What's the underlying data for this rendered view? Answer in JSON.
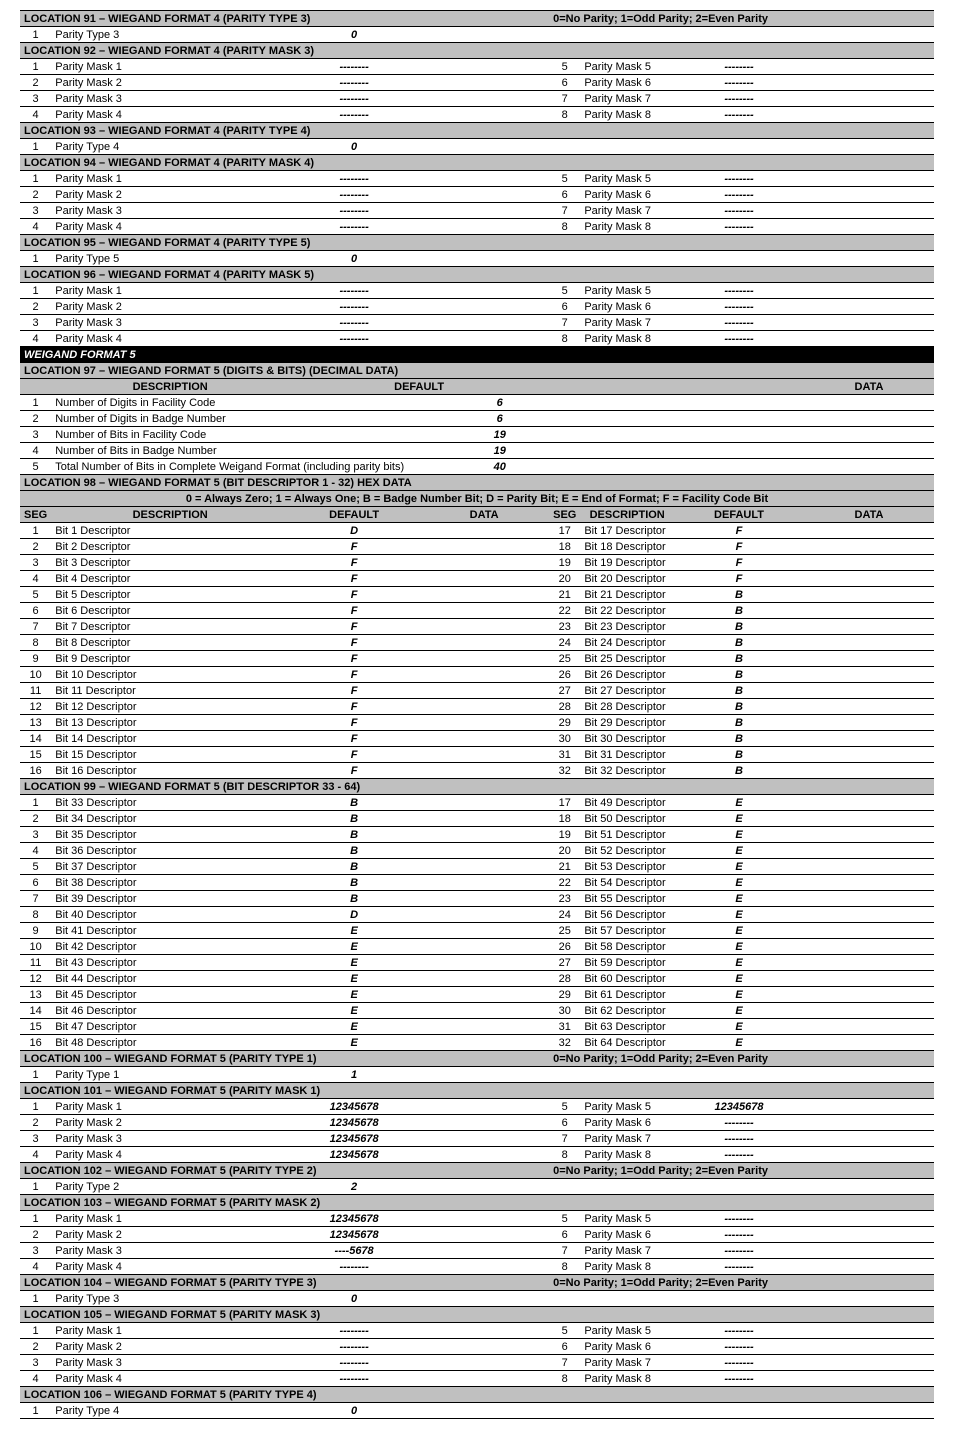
{
  "parity_note": "0=No Parity;  1=Odd Parity;  2=Even Parity",
  "dashes": "--------",
  "legend98": "0 = Always Zero; 1 = Always One; B = Badge Number Bit; D = Parity Bit; E = End of Format; F = Facility Code Bit",
  "loc91": {
    "title": "LOCATION 91 – WIEGAND FORMAT 4 (PARITY TYPE 3)",
    "row": {
      "n": "1",
      "label": "Parity Type 3",
      "def": "0"
    }
  },
  "loc92": {
    "title": "LOCATION 92 – WIEGAND FORMAT 4 (PARITY MASK 3)"
  },
  "loc93": {
    "title": "LOCATION 93 – WIEGAND FORMAT 4 (PARITY TYPE 4)",
    "row": {
      "n": "1",
      "label": "Parity Type 4",
      "def": "0"
    }
  },
  "loc94": {
    "title": "LOCATION 94 – WIEGAND FORMAT 4 (PARITY MASK 4)"
  },
  "loc95": {
    "title": "LOCATION 95 – WIEGAND FORMAT 4 (PARITY TYPE 5)",
    "row": {
      "n": "1",
      "label": "Parity Type 5",
      "def": "0"
    }
  },
  "loc96": {
    "title": "LOCATION 96 – WIEGAND FORMAT 4 (PARITY MASK 5)"
  },
  "wf5": {
    "title": "WEIGAND FORMAT 5"
  },
  "loc97": {
    "title": "LOCATION 97 – WIEGAND FORMAT 5 (DIGITS & BITS)  (DECIMAL DATA)",
    "cols": {
      "c1": "DESCRIPTION",
      "c2": "DEFAULT",
      "c3": "DATA"
    },
    "rows": [
      {
        "n": "1",
        "d": "Number of Digits in Facility Code",
        "v": "6"
      },
      {
        "n": "2",
        "d": "Number of Digits in Badge Number",
        "v": "6"
      },
      {
        "n": "3",
        "d": "Number of Bits in Facility Code",
        "v": "19"
      },
      {
        "n": "4",
        "d": "Number of Bits in Badge Number",
        "v": "19"
      },
      {
        "n": "5",
        "d": "Total Number of Bits in Complete Weigand Format (including parity bits)",
        "v": "40"
      }
    ]
  },
  "loc98": {
    "title": "LOCATION 98 – WIEGAND FORMAT 5 (BIT DESCRIPTOR 1 - 32)  HEX DATA",
    "cols": {
      "seg": "SEG",
      "desc": "DESCRIPTION",
      "def": "DEFAULT",
      "data": "DATA"
    },
    "left": [
      {
        "n": "1",
        "d": "Bit 1 Descriptor",
        "v": "D"
      },
      {
        "n": "2",
        "d": "Bit 2 Descriptor",
        "v": "F"
      },
      {
        "n": "3",
        "d": "Bit 3 Descriptor",
        "v": "F"
      },
      {
        "n": "4",
        "d": "Bit 4 Descriptor",
        "v": "F"
      },
      {
        "n": "5",
        "d": "Bit 5 Descriptor",
        "v": "F"
      },
      {
        "n": "6",
        "d": "Bit 6 Descriptor",
        "v": "F"
      },
      {
        "n": "7",
        "d": "Bit 7 Descriptor",
        "v": "F"
      },
      {
        "n": "8",
        "d": "Bit 8 Descriptor",
        "v": "F"
      },
      {
        "n": "9",
        "d": "Bit 9 Descriptor",
        "v": "F"
      },
      {
        "n": "10",
        "d": "Bit 10 Descriptor",
        "v": "F"
      },
      {
        "n": "11",
        "d": "Bit 11 Descriptor",
        "v": "F"
      },
      {
        "n": "12",
        "d": "Bit 12 Descriptor",
        "v": "F"
      },
      {
        "n": "13",
        "d": "Bit 13 Descriptor",
        "v": "F"
      },
      {
        "n": "14",
        "d": "Bit 14 Descriptor",
        "v": "F"
      },
      {
        "n": "15",
        "d": "Bit 15 Descriptor",
        "v": "F"
      },
      {
        "n": "16",
        "d": "Bit 16 Descriptor",
        "v": "F"
      }
    ],
    "right": [
      {
        "n": "17",
        "d": "Bit 17 Descriptor",
        "v": "F"
      },
      {
        "n": "18",
        "d": "Bit 18 Descriptor",
        "v": "F"
      },
      {
        "n": "19",
        "d": "Bit 19 Descriptor",
        "v": "F"
      },
      {
        "n": "20",
        "d": "Bit 20 Descriptor",
        "v": "F"
      },
      {
        "n": "21",
        "d": "Bit 21 Descriptor",
        "v": "B"
      },
      {
        "n": "22",
        "d": "Bit 22 Descriptor",
        "v": "B"
      },
      {
        "n": "23",
        "d": "Bit 23 Descriptor",
        "v": "B"
      },
      {
        "n": "24",
        "d": "Bit 24 Descriptor",
        "v": "B"
      },
      {
        "n": "25",
        "d": "Bit 25 Descriptor",
        "v": "B"
      },
      {
        "n": "26",
        "d": "Bit 26 Descriptor",
        "v": "B"
      },
      {
        "n": "27",
        "d": "Bit 27 Descriptor",
        "v": "B"
      },
      {
        "n": "28",
        "d": "Bit 28 Descriptor",
        "v": "B"
      },
      {
        "n": "29",
        "d": "Bit 29 Descriptor",
        "v": "B"
      },
      {
        "n": "30",
        "d": "Bit 30 Descriptor",
        "v": "B"
      },
      {
        "n": "31",
        "d": "Bit 31 Descriptor",
        "v": "B"
      },
      {
        "n": "32",
        "d": "Bit 32 Descriptor",
        "v": "B"
      }
    ]
  },
  "loc99": {
    "title": "LOCATION 99 – WIEGAND FORMAT 5 (BIT DESCRIPTOR 33 - 64)",
    "left": [
      {
        "n": "1",
        "d": "Bit 33 Descriptor",
        "v": "B"
      },
      {
        "n": "2",
        "d": "Bit 34 Descriptor",
        "v": "B"
      },
      {
        "n": "3",
        "d": "Bit 35 Descriptor",
        "v": "B"
      },
      {
        "n": "4",
        "d": "Bit 36 Descriptor",
        "v": "B"
      },
      {
        "n": "5",
        "d": "Bit 37 Descriptor",
        "v": "B"
      },
      {
        "n": "6",
        "d": "Bit 38 Descriptor",
        "v": "B"
      },
      {
        "n": "7",
        "d": "Bit 39 Descriptor",
        "v": "B"
      },
      {
        "n": "8",
        "d": "Bit 40 Descriptor",
        "v": "D"
      },
      {
        "n": "9",
        "d": "Bit 41 Descriptor",
        "v": "E"
      },
      {
        "n": "10",
        "d": "Bit 42 Descriptor",
        "v": "E"
      },
      {
        "n": "11",
        "d": "Bit 43 Descriptor",
        "v": "E"
      },
      {
        "n": "12",
        "d": "Bit 44 Descriptor",
        "v": "E"
      },
      {
        "n": "13",
        "d": "Bit 45 Descriptor",
        "v": "E"
      },
      {
        "n": "14",
        "d": "Bit 46 Descriptor",
        "v": "E"
      },
      {
        "n": "15",
        "d": "Bit 47 Descriptor",
        "v": "E"
      },
      {
        "n": "16",
        "d": "Bit 48 Descriptor",
        "v": "E"
      }
    ],
    "right": [
      {
        "n": "17",
        "d": "Bit 49 Descriptor",
        "v": "E"
      },
      {
        "n": "18",
        "d": "Bit 50 Descriptor",
        "v": "E"
      },
      {
        "n": "19",
        "d": "Bit 51 Descriptor",
        "v": "E"
      },
      {
        "n": "20",
        "d": "Bit 52 Descriptor",
        "v": "E"
      },
      {
        "n": "21",
        "d": "Bit 53 Descriptor",
        "v": "E"
      },
      {
        "n": "22",
        "d": "Bit 54 Descriptor",
        "v": "E"
      },
      {
        "n": "23",
        "d": "Bit 55 Descriptor",
        "v": "E"
      },
      {
        "n": "24",
        "d": "Bit 56 Descriptor",
        "v": "E"
      },
      {
        "n": "25",
        "d": "Bit 57 Descriptor",
        "v": "E"
      },
      {
        "n": "26",
        "d": "Bit 58 Descriptor",
        "v": "E"
      },
      {
        "n": "27",
        "d": "Bit 59 Descriptor",
        "v": "E"
      },
      {
        "n": "28",
        "d": "Bit 60 Descriptor",
        "v": "E"
      },
      {
        "n": "29",
        "d": "Bit 61 Descriptor",
        "v": "E"
      },
      {
        "n": "30",
        "d": "Bit 62 Descriptor",
        "v": "E"
      },
      {
        "n": "31",
        "d": "Bit 63 Descriptor",
        "v": "E"
      },
      {
        "n": "32",
        "d": "Bit 64 Descriptor",
        "v": "E"
      }
    ]
  },
  "loc100": {
    "title": "LOCATION 100 – WIEGAND FORMAT 5 (PARITY TYPE 1)",
    "row": {
      "n": "1",
      "label": "Parity Type 1",
      "def": "1"
    }
  },
  "loc101": {
    "title": "LOCATION 101 – WIEGAND FORMAT 5 (PARITY MASK 1)",
    "leftdef": [
      "12345678",
      "12345678",
      "12345678",
      "12345678"
    ],
    "rightdef": [
      "12345678",
      "--------",
      "--------",
      "--------"
    ]
  },
  "loc102": {
    "title": "LOCATION 102 – WIEGAND FORMAT 5 (PARITY TYPE 2)",
    "row": {
      "n": "1",
      "label": "Parity Type 2",
      "def": "2"
    }
  },
  "loc103": {
    "title": "LOCATION 103 – WIEGAND FORMAT 5 (PARITY MASK 2)",
    "leftdef": [
      "12345678",
      "12345678",
      "----5678",
      "--------"
    ],
    "rightdef": [
      "--------",
      "--------",
      "--------",
      "--------"
    ]
  },
  "loc104": {
    "title": "LOCATION 104 – WIEGAND FORMAT 5 (PARITY TYPE 3)",
    "row": {
      "n": "1",
      "label": "Parity Type 3",
      "def": "0"
    }
  },
  "loc105": {
    "title": "LOCATION 105 – WIEGAND FORMAT 5 (PARITY MASK 3)"
  },
  "loc106": {
    "title": "LOCATION 106 – WIEGAND FORMAT 5 (PARITY TYPE 4)",
    "row": {
      "n": "1",
      "label": "Parity Type 4",
      "def": "0"
    }
  },
  "mask_labels": {
    "l1": "Parity Mask 1",
    "l2": "Parity Mask 2",
    "l3": "Parity Mask 3",
    "l4": "Parity Mask 4",
    "r1": "Parity Mask 5",
    "r2": "Parity Mask 6",
    "r3": "Parity Mask 7",
    "r4": "Parity Mask 8"
  }
}
